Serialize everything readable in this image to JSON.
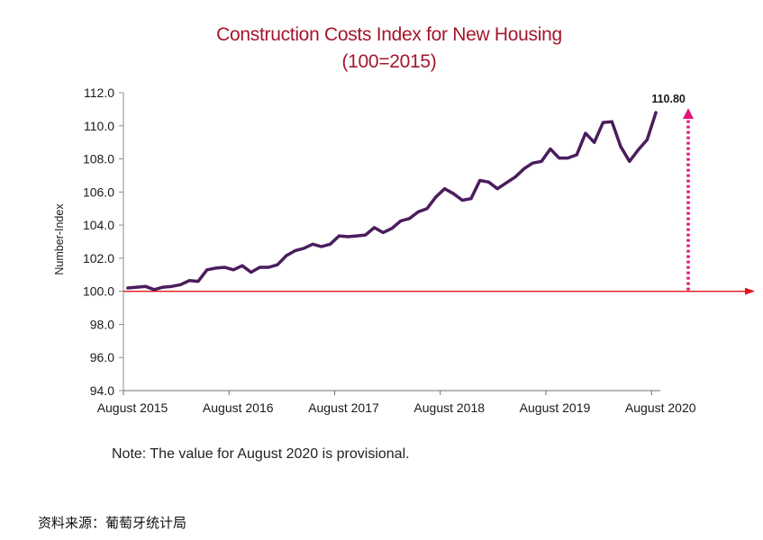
{
  "chart_data": {
    "type": "line",
    "title": "Construction Costs Index for New Housing",
    "subtitle": "(100=2015)",
    "ylabel": "Number-Index",
    "ylim": [
      94.0,
      112.0
    ],
    "y_tick_labels": [
      "112.0",
      "110.0",
      "108.0",
      "106.0",
      "104.0",
      "102.0",
      "100.0",
      "98.0",
      "96.0",
      "94.0"
    ],
    "x_tick_labels": [
      "August 2015",
      "August 2016",
      "August 2017",
      "August 2018",
      "August 2019",
      "August 2020"
    ],
    "x": [
      "2015-08",
      "2015-09",
      "2015-10",
      "2015-11",
      "2015-12",
      "2016-01",
      "2016-02",
      "2016-03",
      "2016-04",
      "2016-05",
      "2016-06",
      "2016-07",
      "2016-08",
      "2016-09",
      "2016-10",
      "2016-11",
      "2016-12",
      "2017-01",
      "2017-02",
      "2017-03",
      "2017-04",
      "2017-05",
      "2017-06",
      "2017-07",
      "2017-08",
      "2017-09",
      "2017-10",
      "2017-11",
      "2017-12",
      "2018-01",
      "2018-02",
      "2018-03",
      "2018-04",
      "2018-05",
      "2018-06",
      "2018-07",
      "2018-08",
      "2018-09",
      "2018-10",
      "2018-11",
      "2018-12",
      "2019-01",
      "2019-02",
      "2019-03",
      "2019-04",
      "2019-05",
      "2019-06",
      "2019-07",
      "2019-08",
      "2019-09",
      "2019-10",
      "2019-11",
      "2019-12",
      "2020-01",
      "2020-02",
      "2020-03",
      "2020-04",
      "2020-05",
      "2020-06",
      "2020-07",
      "2020-08"
    ],
    "series": [
      {
        "values": [
          100.2,
          100.25,
          100.3,
          100.1,
          100.25,
          100.3,
          100.4,
          100.65,
          100.6,
          101.3,
          101.4,
          101.45,
          101.3,
          101.55,
          101.15,
          101.45,
          101.45,
          101.6,
          102.15,
          102.45,
          102.6,
          102.85,
          102.7,
          102.85,
          103.35,
          103.3,
          103.35,
          103.4,
          103.85,
          103.55,
          103.8,
          104.25,
          104.4,
          104.8,
          105.0,
          105.7,
          106.2,
          105.9,
          105.5,
          105.6,
          106.7,
          106.6,
          106.2,
          106.55,
          106.9,
          107.4,
          107.75,
          107.85,
          108.6,
          108.05,
          108.05,
          108.25,
          109.55,
          109.0,
          110.2,
          110.25,
          108.75,
          107.85,
          108.55,
          109.15,
          110.8
        ]
      }
    ],
    "reference_line": {
      "value": 100.0
    },
    "annotation": {
      "label": "110.80",
      "x": "2020-08",
      "value": 110.8
    },
    "note": "Note: The value for August 2020 is provisional.",
    "grid": false,
    "legend": "none"
  },
  "colors": {
    "title": "#a5162d",
    "series": "#4b1d5c",
    "reference_line": "#e3141b",
    "arrow": "#e5127a",
    "axis": "#8c8c8c"
  },
  "source": "资料来源：葡萄牙统计局"
}
